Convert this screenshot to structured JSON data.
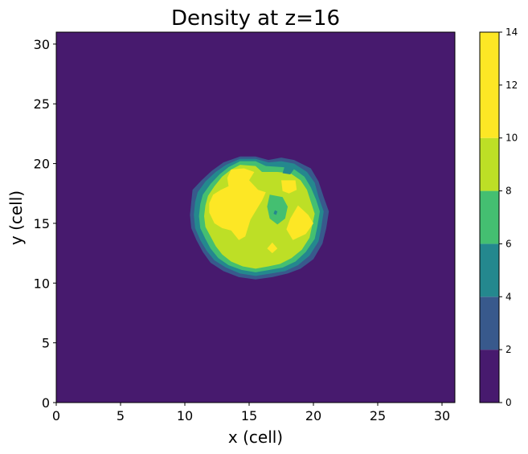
{
  "chart_data": {
    "type": "contourf",
    "title": "Density at z=16",
    "xlabel": "x (cell)",
    "ylabel": "y (cell)",
    "xlim": [
      0,
      31
    ],
    "ylim": [
      0,
      31
    ],
    "xticks": [
      0,
      5,
      10,
      15,
      20,
      25,
      30
    ],
    "yticks": [
      0,
      5,
      10,
      15,
      20,
      25,
      30
    ],
    "grid": false,
    "colorbar": {
      "levels": [
        0,
        2,
        4,
        6,
        8,
        10,
        14
      ],
      "ticks": [
        0,
        2,
        4,
        6,
        8,
        10,
        12,
        14
      ],
      "colors": [
        "#471a6e",
        "#38598c",
        "#24888e",
        "#44bf71",
        "#bddf26",
        "#fde725"
      ]
    },
    "regions": [
      {
        "level_min": 2,
        "polygon": [
          [
            14.3,
            20.6
          ],
          [
            15.5,
            20.6
          ],
          [
            16.5,
            20.3
          ],
          [
            17.5,
            20.5
          ],
          [
            18.5,
            20.3
          ],
          [
            19.8,
            19.6
          ],
          [
            20.4,
            18.5
          ],
          [
            20.8,
            17.2
          ],
          [
            21.2,
            16.0
          ],
          [
            21.0,
            14.6
          ],
          [
            20.7,
            13.3
          ],
          [
            20.0,
            12.0
          ],
          [
            19.0,
            11.2
          ],
          [
            18.0,
            10.8
          ],
          [
            16.8,
            10.5
          ],
          [
            15.5,
            10.3
          ],
          [
            14.2,
            10.5
          ],
          [
            13.0,
            11.0
          ],
          [
            12.0,
            11.7
          ],
          [
            11.4,
            12.6
          ],
          [
            10.9,
            13.6
          ],
          [
            10.5,
            14.6
          ],
          [
            10.4,
            15.7
          ],
          [
            10.5,
            16.8
          ],
          [
            10.6,
            17.8
          ],
          [
            11.3,
            18.6
          ],
          [
            12.1,
            19.4
          ],
          [
            13.0,
            20.1
          ]
        ]
      },
      {
        "level_min": 4,
        "polygon": [
          [
            14.3,
            20.4
          ],
          [
            15.5,
            20.4
          ],
          [
            16.5,
            20.1
          ],
          [
            17.5,
            20.2
          ],
          [
            18.5,
            20.0
          ],
          [
            19.5,
            19.3
          ],
          [
            20.1,
            18.4
          ],
          [
            20.4,
            17.2
          ],
          [
            20.8,
            16.0
          ],
          [
            20.6,
            14.6
          ],
          [
            20.4,
            13.5
          ],
          [
            19.7,
            12.3
          ],
          [
            18.8,
            11.5
          ],
          [
            17.8,
            11.0
          ],
          [
            16.7,
            10.8
          ],
          [
            15.5,
            10.6
          ],
          [
            14.3,
            10.8
          ],
          [
            13.2,
            11.3
          ],
          [
            12.3,
            11.9
          ],
          [
            11.7,
            12.7
          ],
          [
            11.2,
            13.6
          ],
          [
            10.8,
            14.6
          ],
          [
            10.7,
            15.7
          ],
          [
            10.8,
            16.8
          ],
          [
            11.0,
            17.6
          ],
          [
            11.6,
            18.5
          ],
          [
            12.4,
            19.3
          ],
          [
            13.2,
            19.9
          ]
        ]
      },
      {
        "level_min": 6,
        "polygon": [
          [
            14.3,
            20.2
          ],
          [
            15.5,
            20.2
          ],
          [
            16.3,
            19.8
          ],
          [
            17.6,
            19.7
          ],
          [
            18.4,
            19.6
          ],
          [
            19.3,
            18.9
          ],
          [
            19.8,
            18.0
          ],
          [
            20.2,
            17.0
          ],
          [
            20.5,
            16.0
          ],
          [
            20.3,
            14.7
          ],
          [
            20.1,
            13.7
          ],
          [
            19.4,
            12.6
          ],
          [
            18.6,
            11.8
          ],
          [
            17.6,
            11.3
          ],
          [
            16.6,
            11.1
          ],
          [
            15.5,
            10.9
          ],
          [
            14.4,
            11.1
          ],
          [
            13.4,
            11.5
          ],
          [
            12.6,
            12.1
          ],
          [
            12.0,
            12.9
          ],
          [
            11.6,
            13.7
          ],
          [
            11.2,
            14.6
          ],
          [
            11.1,
            15.6
          ],
          [
            11.2,
            16.6
          ],
          [
            11.4,
            17.4
          ],
          [
            12.0,
            18.3
          ],
          [
            12.7,
            19.1
          ],
          [
            13.4,
            19.7
          ]
        ]
      },
      {
        "level_min": 8,
        "polygon": [
          [
            14.3,
            19.9
          ],
          [
            15.5,
            19.8
          ],
          [
            16.0,
            19.3
          ],
          [
            17.2,
            19.3
          ],
          [
            18.2,
            19.2
          ],
          [
            19.0,
            18.6
          ],
          [
            19.5,
            17.8
          ],
          [
            19.8,
            16.8
          ],
          [
            20.1,
            15.8
          ],
          [
            19.9,
            14.8
          ],
          [
            19.7,
            13.8
          ],
          [
            19.1,
            12.8
          ],
          [
            18.3,
            12.1
          ],
          [
            17.4,
            11.6
          ],
          [
            16.5,
            11.4
          ],
          [
            15.5,
            11.2
          ],
          [
            14.5,
            11.4
          ],
          [
            13.6,
            11.8
          ],
          [
            12.9,
            12.4
          ],
          [
            12.4,
            13.1
          ],
          [
            12.0,
            13.9
          ],
          [
            11.6,
            14.7
          ],
          [
            11.5,
            15.6
          ],
          [
            11.6,
            16.5
          ],
          [
            11.8,
            17.3
          ],
          [
            12.3,
            18.1
          ],
          [
            12.9,
            18.9
          ],
          [
            13.6,
            19.5
          ]
        ]
      },
      {
        "level_min": 10,
        "polygon": [
          [
            13.6,
            19.5
          ],
          [
            14.6,
            19.6
          ],
          [
            15.4,
            19.3
          ],
          [
            15.0,
            18.6
          ],
          [
            15.7,
            17.8
          ],
          [
            16.3,
            17.6
          ],
          [
            16.0,
            16.9
          ],
          [
            15.6,
            16.2
          ],
          [
            15.1,
            15.3
          ],
          [
            14.7,
            13.9
          ],
          [
            14.2,
            13.6
          ],
          [
            13.6,
            14.4
          ],
          [
            12.9,
            14.6
          ],
          [
            12.3,
            15.0
          ],
          [
            11.9,
            15.9
          ],
          [
            11.9,
            16.7
          ],
          [
            12.2,
            17.4
          ],
          [
            12.8,
            17.8
          ],
          [
            13.4,
            18.1
          ],
          [
            13.3,
            18.8
          ]
        ]
      },
      {
        "level_min": 10,
        "polygon": [
          [
            17.5,
            18.6
          ],
          [
            18.6,
            18.6
          ],
          [
            18.7,
            17.8
          ],
          [
            18.1,
            17.5
          ],
          [
            17.6,
            17.7
          ]
        ]
      },
      {
        "level_min": 10,
        "polygon": [
          [
            18.8,
            16.5
          ],
          [
            19.6,
            15.7
          ],
          [
            20.0,
            15.0
          ],
          [
            19.4,
            14.1
          ],
          [
            18.4,
            13.6
          ],
          [
            17.9,
            14.5
          ],
          [
            18.2,
            15.4
          ]
        ]
      },
      {
        "level_min": 10,
        "polygon": [
          [
            16.8,
            13.4
          ],
          [
            17.2,
            12.9
          ],
          [
            16.8,
            12.5
          ],
          [
            16.4,
            12.9
          ]
        ]
      },
      {
        "level_min": 4,
        "polygon": [
          [
            17.8,
            19.9
          ],
          [
            18.6,
            19.7
          ],
          [
            18.2,
            19.1
          ],
          [
            17.6,
            19.2
          ]
        ]
      },
      {
        "level_min": 6,
        "polygon": [
          [
            16.6,
            17.4
          ],
          [
            17.6,
            17.2
          ],
          [
            18.0,
            16.4
          ],
          [
            17.8,
            15.4
          ],
          [
            17.2,
            14.9
          ],
          [
            16.6,
            15.4
          ],
          [
            16.4,
            16.4
          ]
        ]
      },
      {
        "level_min": 4,
        "polygon": [
          [
            17.0,
            16.1
          ],
          [
            17.2,
            16.0
          ],
          [
            17.1,
            15.7
          ],
          [
            16.9,
            15.8
          ]
        ]
      }
    ]
  }
}
